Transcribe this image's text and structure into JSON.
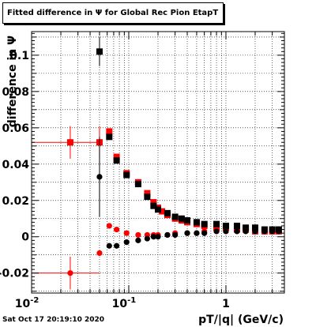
{
  "chart_data": {
    "type": "scatter",
    "title": "Fitted difference in  Ψ  for Global Rec Pion EtapT",
    "xlabel": "pT/|q| (GeV/c)",
    "ylabel": "difference in  Ψ",
    "x_scale": "log",
    "xlim": [
      0.01,
      4.0
    ],
    "ylim": [
      -0.031,
      0.113
    ],
    "grid": true,
    "x_ticks": [
      {
        "value": 0.01,
        "label": "10",
        "exp": "-2"
      },
      {
        "value": 0.1,
        "label": "10",
        "exp": "-1"
      },
      {
        "value": 1,
        "label": "1",
        "exp": ""
      }
    ],
    "y_ticks": [
      {
        "value": -0.02,
        "label": "-0.02"
      },
      {
        "value": 0,
        "label": "0"
      },
      {
        "value": 0.02,
        "label": "0.02"
      },
      {
        "value": 0.04,
        "label": "0.04"
      },
      {
        "value": 0.06,
        "label": "0.06"
      },
      {
        "value": 0.08,
        "label": "0.08"
      },
      {
        "value": 0.1,
        "label": "0.1"
      }
    ],
    "timestamp": "Sat Oct 17 20:19:10 2020",
    "series": [
      {
        "color": "#ff0000",
        "marker": "square",
        "points": [
          {
            "x": 0.025,
            "y": 0.052,
            "xerr": [
              0.01,
              0.05
            ],
            "yerr": 0.009
          },
          {
            "x": 0.05,
            "y": 0.052,
            "yerr": 0.009
          },
          {
            "x": 0.063,
            "y": 0.058
          },
          {
            "x": 0.075,
            "y": 0.044
          },
          {
            "x": 0.095,
            "y": 0.035
          },
          {
            "x": 0.125,
            "y": 0.03
          },
          {
            "x": 0.155,
            "y": 0.024
          },
          {
            "x": 0.18,
            "y": 0.019
          },
          {
            "x": 0.2,
            "y": 0.016
          },
          {
            "x": 0.22,
            "y": 0.014
          },
          {
            "x": 0.25,
            "y": 0.012
          },
          {
            "x": 0.3,
            "y": 0.01
          },
          {
            "x": 0.35,
            "y": 0.009
          },
          {
            "x": 0.4,
            "y": 0.008
          },
          {
            "x": 0.5,
            "y": 0.007
          },
          {
            "x": 0.6,
            "y": 0.006
          },
          {
            "x": 0.8,
            "y": 0.005
          },
          {
            "x": 1.0,
            "y": 0.005
          },
          {
            "x": 1.3,
            "y": 0.004
          },
          {
            "x": 1.6,
            "y": 0.004
          },
          {
            "x": 2.0,
            "y": 0.003
          },
          {
            "x": 2.5,
            "y": 0.003
          },
          {
            "x": 3.0,
            "y": 0.003
          },
          {
            "x": 3.5,
            "y": 0.003
          }
        ]
      },
      {
        "color": "#000000",
        "marker": "square",
        "points": [
          {
            "x": 0.05,
            "y": 0.102,
            "yerr": 0.008
          },
          {
            "x": 0.063,
            "y": 0.055
          },
          {
            "x": 0.075,
            "y": 0.042
          },
          {
            "x": 0.095,
            "y": 0.034
          },
          {
            "x": 0.125,
            "y": 0.029
          },
          {
            "x": 0.155,
            "y": 0.022
          },
          {
            "x": 0.18,
            "y": 0.017
          },
          {
            "x": 0.2,
            "y": 0.015
          },
          {
            "x": 0.25,
            "y": 0.013
          },
          {
            "x": 0.3,
            "y": 0.011
          },
          {
            "x": 0.35,
            "y": 0.01
          },
          {
            "x": 0.4,
            "y": 0.009
          },
          {
            "x": 0.5,
            "y": 0.008
          },
          {
            "x": 0.6,
            "y": 0.007
          },
          {
            "x": 0.8,
            "y": 0.007
          },
          {
            "x": 1.0,
            "y": 0.006
          },
          {
            "x": 1.3,
            "y": 0.006
          },
          {
            "x": 1.6,
            "y": 0.005
          },
          {
            "x": 2.0,
            "y": 0.005
          },
          {
            "x": 2.5,
            "y": 0.004
          },
          {
            "x": 3.0,
            "y": 0.004
          },
          {
            "x": 3.5,
            "y": 0.004
          }
        ]
      },
      {
        "color": "#ff0000",
        "marker": "circle",
        "points": [
          {
            "x": 0.025,
            "y": -0.02,
            "xerr": [
              0.01,
              0.05
            ],
            "yerr": 0.009
          },
          {
            "x": 0.05,
            "y": -0.009
          },
          {
            "x": 0.063,
            "y": 0.006
          },
          {
            "x": 0.075,
            "y": 0.004
          },
          {
            "x": 0.095,
            "y": 0.002
          },
          {
            "x": 0.125,
            "y": 0.001
          },
          {
            "x": 0.155,
            "y": 0.001
          },
          {
            "x": 0.18,
            "y": 0.001
          },
          {
            "x": 0.2,
            "y": 0.001
          },
          {
            "x": 0.25,
            "y": 0.001
          },
          {
            "x": 0.3,
            "y": 0.002
          },
          {
            "x": 0.4,
            "y": 0.002
          },
          {
            "x": 0.5,
            "y": 0.002
          },
          {
            "x": 0.6,
            "y": 0.003
          },
          {
            "x": 0.8,
            "y": 0.003
          },
          {
            "x": 1.0,
            "y": 0.003
          },
          {
            "x": 1.3,
            "y": 0.003
          },
          {
            "x": 1.6,
            "y": 0.003
          },
          {
            "x": 2.0,
            "y": 0.003
          },
          {
            "x": 2.5,
            "y": 0.003
          },
          {
            "x": 3.0,
            "y": 0.003
          },
          {
            "x": 3.5,
            "y": 0.003
          }
        ]
      },
      {
        "color": "#000000",
        "marker": "circle",
        "points": [
          {
            "x": 0.05,
            "y": 0.033,
            "yerr": 0.022
          },
          {
            "x": 0.063,
            "y": -0.005
          },
          {
            "x": 0.075,
            "y": -0.005
          },
          {
            "x": 0.095,
            "y": -0.003
          },
          {
            "x": 0.125,
            "y": -0.002
          },
          {
            "x": 0.155,
            "y": -0.001
          },
          {
            "x": 0.18,
            "y": 0.0
          },
          {
            "x": 0.2,
            "y": 0.0
          },
          {
            "x": 0.25,
            "y": 0.001
          },
          {
            "x": 0.3,
            "y": 0.001
          },
          {
            "x": 0.4,
            "y": 0.002
          },
          {
            "x": 0.5,
            "y": 0.002
          },
          {
            "x": 0.6,
            "y": 0.002
          },
          {
            "x": 0.8,
            "y": 0.003
          },
          {
            "x": 1.0,
            "y": 0.003
          },
          {
            "x": 1.3,
            "y": 0.003
          },
          {
            "x": 1.6,
            "y": 0.003
          },
          {
            "x": 2.0,
            "y": 0.003
          },
          {
            "x": 2.5,
            "y": 0.003
          },
          {
            "x": 3.0,
            "y": 0.003
          },
          {
            "x": 3.5,
            "y": 0.003
          }
        ]
      }
    ]
  }
}
